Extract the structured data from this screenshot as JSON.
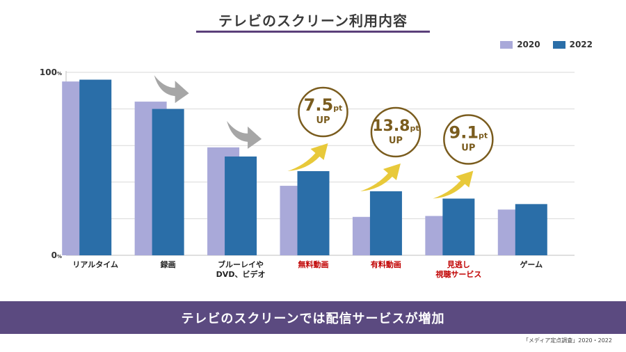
{
  "page": {
    "title": "テレビのスクリーン利用内容",
    "banner": "テレビのスクリーンでは配信サービスが増加",
    "source": "「メディア定点調査」2020・2022"
  },
  "colors": {
    "s2020": "#a9a9d9",
    "s2022": "#2a6ea8",
    "highlight": "#c00000",
    "badge": "#7a5c1e",
    "arrow_up": "#e8c93a",
    "arrow_down": "#a6a6a6",
    "banner_bg": "#5b4a80"
  },
  "chart_data": {
    "type": "bar",
    "title": "テレビのスクリーン利用内容",
    "categories": [
      "リアルタイム",
      "録画",
      "ブルーレイや\nDVD、ビデオ",
      "無料動画",
      "有料動画",
      "見逃し\n視聴サービス",
      "ゲーム"
    ],
    "highlight_categories": [
      false,
      false,
      false,
      true,
      true,
      true,
      false
    ],
    "series": [
      {
        "name": "2020",
        "values": [
          95,
          84,
          59,
          38,
          21,
          21.5,
          25
        ]
      },
      {
        "name": "2022",
        "values": [
          96,
          80,
          54,
          46,
          35,
          31,
          28
        ]
      }
    ],
    "ylim": [
      0,
      100
    ],
    "y_ticks": [
      {
        "value": 0,
        "label": "0%"
      },
      {
        "value": 100,
        "label": "100%"
      }
    ],
    "gridlines": [
      20,
      40,
      60,
      80,
      100
    ],
    "legend_position": "top-right",
    "trend_arrows": [
      {
        "category_index": 1,
        "direction": "down"
      },
      {
        "category_index": 2,
        "direction": "down"
      },
      {
        "category_index": 3,
        "direction": "up"
      },
      {
        "category_index": 4,
        "direction": "up"
      },
      {
        "category_index": 5,
        "direction": "up"
      }
    ],
    "annotations": [
      {
        "category_index": 3,
        "value": "7.5",
        "unit": "pt",
        "sub": "UP"
      },
      {
        "category_index": 4,
        "value": "13.8",
        "unit": "pt",
        "sub": "UP"
      },
      {
        "category_index": 5,
        "value": "9.1",
        "unit": "pt",
        "sub": "UP"
      }
    ]
  }
}
